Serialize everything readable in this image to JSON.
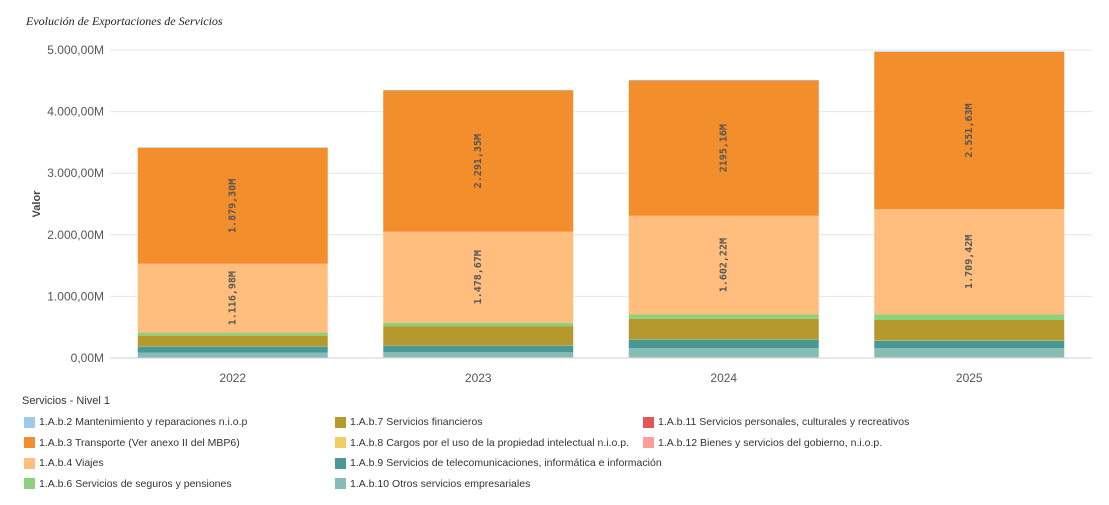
{
  "chart_data": {
    "type": "bar",
    "stacked": true,
    "title": "Evolución de Exportaciones de Servicios",
    "ylabel": "Valor",
    "xlabel": "",
    "ylim": [
      0,
      5000
    ],
    "yticks": [
      "0,00M",
      "1.000,00M",
      "2.000,00M",
      "3.000,00M",
      "4.000,00M",
      "5.000,00M"
    ],
    "grid": true,
    "legend_title": "Servicios - Nivel 1",
    "legend_position": "bottom",
    "categories": [
      "2022",
      "2023",
      "2024",
      "2025"
    ],
    "series": [
      {
        "name": "1.A.b.11 Servicios personales, culturales y recreativos",
        "color": "#e15759",
        "values": [
          5,
          8,
          8,
          8
        ]
      },
      {
        "name": "1.A.b.12 Bienes y servicios del gobierno, n.i.o.p.",
        "color": "#ff9d9a",
        "values": [
          3,
          4,
          4,
          4
        ]
      },
      {
        "name": "1.A.b.10 Otros servicios empresariales",
        "color": "#86bcb6",
        "values": [
          80,
          80,
          150,
          150
        ]
      },
      {
        "name": "1.A.b.9 Servicios de telecomunicaciones, informática e información",
        "color": "#499894",
        "values": [
          100,
          110,
          140,
          120
        ]
      },
      {
        "name": "1.A.b.8 Cargos por el uso de la propiedad intelectual n.i.o.p.",
        "color": "#f1ce63",
        "values": [
          5,
          5,
          5,
          5
        ]
      },
      {
        "name": "1.A.b.7 Servicios financieros",
        "color": "#b6992d",
        "values": [
          170,
          310,
          330,
          330
        ]
      },
      {
        "name": "1.A.b.6 Servicios de seguros y pensiones",
        "color": "#8cd17d",
        "values": [
          50,
          55,
          70,
          90
        ]
      },
      {
        "name": "1.A.b.4 Viajes",
        "color": "#ffbe7d",
        "values": [
          1116.98,
          1478.67,
          1602.22,
          1709.42
        ],
        "labels": [
          "1.116,98M",
          "1.478,67M",
          "1.602,22M",
          "1.709,42M"
        ]
      },
      {
        "name": "1.A.b.3 Transporte (Ver anexo II del MBP6)",
        "color": "#f28e2b",
        "values": [
          1879.3,
          2291.35,
          2195.16,
          2551.63
        ],
        "labels": [
          "1.879,30M",
          "2.291,35M",
          "2195,16M",
          "2.551,63M"
        ]
      },
      {
        "name": "1.A.b.2 Mantenimiento y reparaciones n.i.o.p",
        "color": "#a0cbe8",
        "values": [
          10,
          10,
          10,
          10
        ]
      }
    ]
  },
  "legend": [
    {
      "label": "1.A.b.2 Mantenimiento y reparaciones n.i.o.p",
      "color": "#a0cbe8"
    },
    {
      "label": "1.A.b.3 Transporte (Ver anexo II del MBP6)",
      "color": "#f28e2b"
    },
    {
      "label": "1.A.b.4 Viajes",
      "color": "#ffbe7d"
    },
    {
      "label": "1.A.b.6 Servicios de seguros y pensiones",
      "color": "#8cd17d"
    },
    {
      "label": "1.A.b.7 Servicios financieros",
      "color": "#b6992d"
    },
    {
      "label": "1.A.b.8 Cargos por el uso de la propiedad intelectual n.i.o.p.",
      "color": "#f1ce63"
    },
    {
      "label": "1.A.b.9 Servicios de telecomunicaciones, informática e información",
      "color": "#499894"
    },
    {
      "label": "1.A.b.10 Otros servicios empresariales",
      "color": "#86bcb6"
    },
    {
      "label": "1.A.b.11 Servicios personales, culturales y recreativos",
      "color": "#e15759"
    },
    {
      "label": "1.A.b.12 Bienes y servicios del gobierno, n.i.o.p.",
      "color": "#ff9d9a"
    }
  ]
}
